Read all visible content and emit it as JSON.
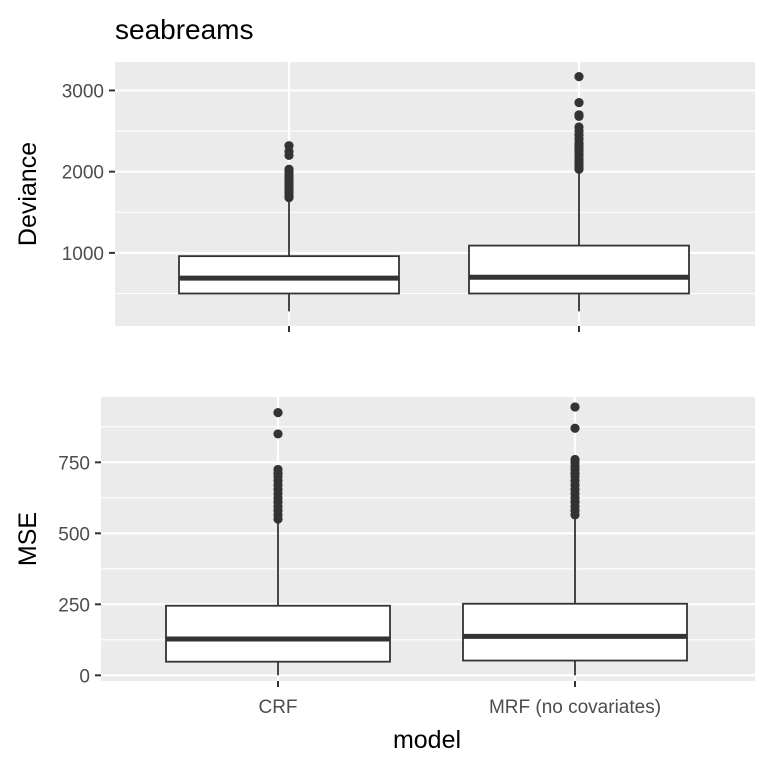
{
  "title": "seabreams",
  "xlabel": "model",
  "colors": {
    "panel_bg": "#ebebeb",
    "grid": "#ffffff",
    "box_fill": "#ffffff",
    "stroke": "#333333",
    "tick_text": "#4d4d4d",
    "text": "#000000"
  },
  "chart_data": [
    {
      "type": "boxplot",
      "ylabel": "Deviance",
      "ylim": [
        100,
        3350
      ],
      "yticks": [
        1000,
        2000,
        3000
      ],
      "ytick_labels": [
        "1000",
        "2000",
        "3000"
      ],
      "categories": [
        "CRF",
        "MRF (no covariates)"
      ],
      "boxes": [
        {
          "q1": 500,
          "median": 690,
          "q3": 960,
          "whisker_low": 280,
          "whisker_high": 1650,
          "outliers": [
            1680,
            1700,
            1720,
            1750,
            1780,
            1800,
            1820,
            1850,
            1880,
            1900,
            1930,
            1960,
            2000,
            2030,
            2200,
            2250,
            2320
          ]
        },
        {
          "q1": 500,
          "median": 700,
          "q3": 1090,
          "whisker_low": 280,
          "whisker_high": 2000,
          "outliers": [
            2030,
            2060,
            2090,
            2120,
            2150,
            2180,
            2210,
            2250,
            2280,
            2300,
            2330,
            2350,
            2400,
            2450,
            2500,
            2550,
            2680,
            2700,
            2850,
            3170
          ]
        }
      ]
    },
    {
      "type": "boxplot",
      "ylabel": "MSE",
      "ylim": [
        -20,
        980
      ],
      "yticks": [
        0,
        250,
        500,
        750
      ],
      "ytick_labels": [
        "0",
        "250",
        "500",
        "750"
      ],
      "categories": [
        "CRF",
        "MRF (no covariates)"
      ],
      "category_labels": [
        "CRF",
        "MRF (no covariates)"
      ],
      "boxes": [
        {
          "q1": 48,
          "median": 128,
          "q3": 245,
          "whisker_low": 0,
          "whisker_high": 540,
          "outliers": [
            550,
            565,
            580,
            595,
            610,
            625,
            640,
            655,
            670,
            685,
            700,
            712,
            725,
            850,
            925
          ]
        },
        {
          "q1": 52,
          "median": 137,
          "q3": 252,
          "whisker_low": 0,
          "whisker_high": 555,
          "outliers": [
            565,
            580,
            595,
            610,
            625,
            640,
            655,
            670,
            685,
            700,
            712,
            725,
            737,
            750,
            760,
            870,
            945
          ]
        }
      ]
    }
  ]
}
